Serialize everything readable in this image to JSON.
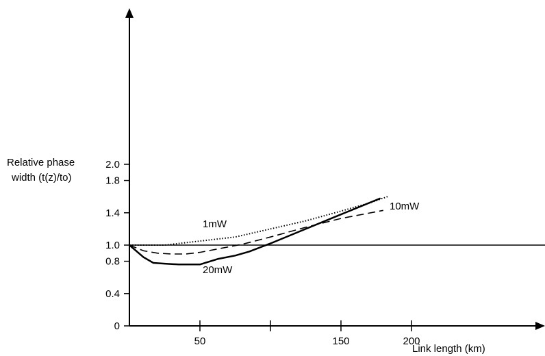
{
  "chart_data": {
    "type": "line",
    "title": "",
    "ylabel_lines": [
      "Relative phase",
      "width (t(z)/to)"
    ],
    "xlabel": "Link length (km)",
    "x_ticks": [
      {
        "value": 50,
        "label": "50"
      },
      {
        "value": 100,
        "label": ""
      },
      {
        "value": 150,
        "label": "150"
      },
      {
        "value": 200,
        "label": "200"
      }
    ],
    "y_ticks": [
      {
        "value": 0,
        "label": "0"
      },
      {
        "value": 0.4,
        "label": "0.4"
      },
      {
        "value": 0.8,
        "label": "0.8"
      },
      {
        "value": 1.0,
        "label": "1.0"
      },
      {
        "value": 1.4,
        "label": "1.4"
      },
      {
        "value": 1.8,
        "label": "1.8"
      },
      {
        "value": 2.0,
        "label": "2.0"
      }
    ],
    "reference_line": {
      "y": 1.0
    },
    "series": [
      {
        "name": "1mW",
        "style": "dotted",
        "x": [
          0,
          25,
          50,
          75,
          100,
          125,
          150,
          170,
          183
        ],
        "y": [
          1.0,
          1.0,
          1.05,
          1.1,
          1.2,
          1.3,
          1.42,
          1.52,
          1.6
        ]
      },
      {
        "name": "10mW",
        "style": "dashed",
        "x": [
          0,
          10,
          20,
          30,
          40,
          50,
          65,
          80,
          100,
          125,
          150,
          180
        ],
        "y": [
          1.0,
          0.93,
          0.9,
          0.89,
          0.89,
          0.91,
          0.96,
          1.01,
          1.1,
          1.22,
          1.33,
          1.43
        ]
      },
      {
        "name": "20mW",
        "style": "solid",
        "x": [
          0,
          10,
          17,
          25,
          35,
          50,
          63,
          75,
          85,
          100,
          125,
          150,
          178
        ],
        "y": [
          1.0,
          0.85,
          0.78,
          0.77,
          0.76,
          0.76,
          0.83,
          0.87,
          0.92,
          1.02,
          1.2,
          1.38,
          1.58
        ]
      }
    ],
    "series_labels": [
      {
        "name": "1mW",
        "text": "1mW"
      },
      {
        "name": "10mW",
        "text": "10mW"
      },
      {
        "name": "20mW",
        "text": "20mW"
      }
    ]
  }
}
